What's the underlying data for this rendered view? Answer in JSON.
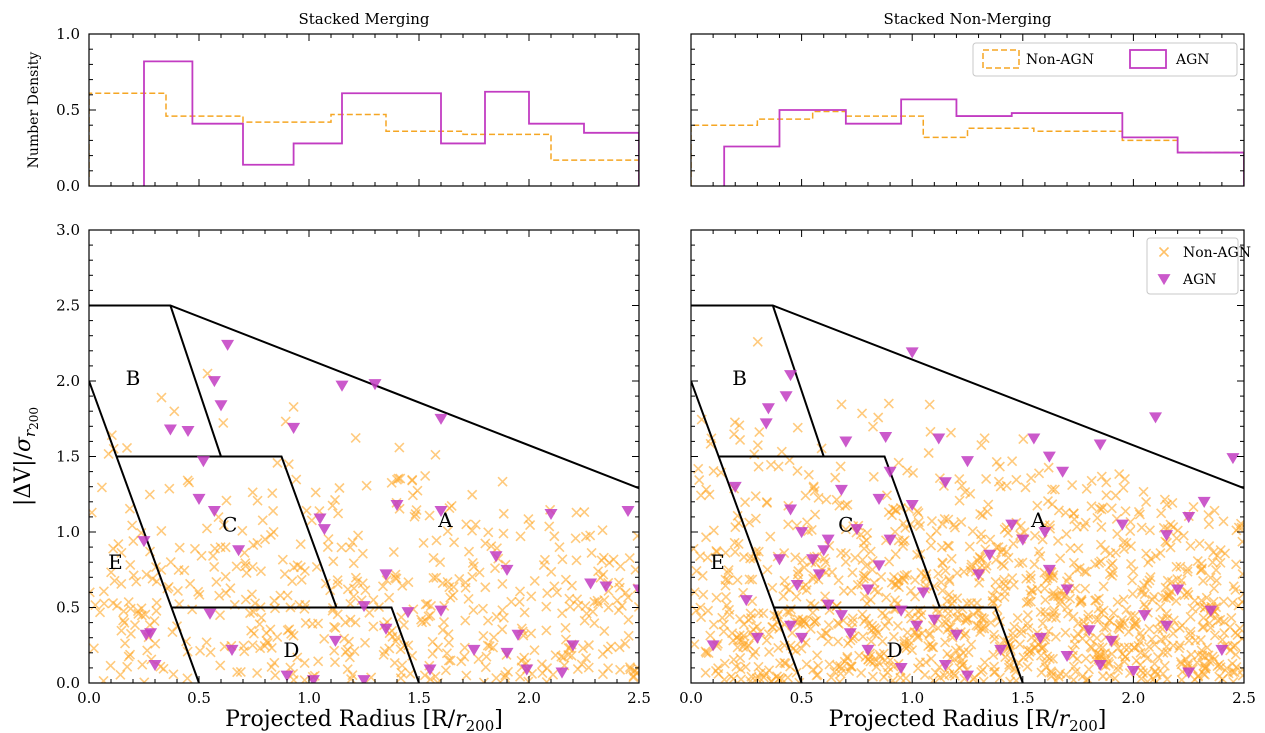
{
  "colors": {
    "non_agn": "#ffa726",
    "non_agn_hist": "#f5a623",
    "agn": "#c23cc2",
    "agn_marker": "#c23cc2",
    "axes": "#000000"
  },
  "chart_data": [
    {
      "panel": "top-left",
      "type": "step-histogram",
      "title": "Stacked Merging",
      "ylabel": "Number Density",
      "xlim": [
        0,
        2.5
      ],
      "ylim": [
        0,
        1.0
      ],
      "yticks": [
        "0.0",
        "0.5",
        "1.0"
      ],
      "show_x_tick_labels": false,
      "series": [
        {
          "name": "Non-AGN",
          "style": "dashed",
          "edges": [
            0.0,
            0.35,
            0.7,
            1.1,
            1.35,
            1.7,
            2.1,
            2.5
          ],
          "values": [
            0.61,
            0.46,
            0.42,
            0.47,
            0.36,
            0.34,
            0.17
          ]
        },
        {
          "name": "AGN",
          "style": "solid",
          "edges": [
            0.25,
            0.47,
            0.7,
            0.93,
            1.15,
            1.6,
            1.8,
            2.0,
            2.25,
            2.5
          ],
          "values": [
            0.82,
            0.41,
            0.14,
            0.28,
            0.61,
            0.28,
            0.62,
            0.41,
            0.35
          ]
        }
      ]
    },
    {
      "panel": "top-right",
      "type": "step-histogram",
      "title": "Stacked Non-Merging",
      "xlim": [
        0,
        2.5
      ],
      "ylim": [
        0,
        1.0
      ],
      "show_y_tick_labels": false,
      "show_x_tick_labels": false,
      "legend": {
        "position": "top-right",
        "entries": [
          "Non-AGN",
          "AGN"
        ]
      },
      "series": [
        {
          "name": "Non-AGN",
          "style": "dashed",
          "edges": [
            0.0,
            0.3,
            0.55,
            0.7,
            1.05,
            1.25,
            1.55,
            1.95,
            2.2,
            2.5
          ],
          "values": [
            0.4,
            0.44,
            0.49,
            0.46,
            0.32,
            0.38,
            0.36,
            0.3,
            0.22
          ]
        },
        {
          "name": "AGN",
          "style": "solid",
          "edges": [
            0.15,
            0.4,
            0.7,
            0.95,
            1.2,
            1.45,
            1.95,
            2.2,
            2.5
          ],
          "values": [
            0.26,
            0.5,
            0.41,
            0.57,
            0.46,
            0.48,
            0.32,
            0.22
          ]
        }
      ]
    },
    {
      "panel": "bottom-left",
      "type": "scatter",
      "xlabel": "Projected Radius [R/r200]",
      "ylabel": "|ΔV|/σr200",
      "xlim": [
        0,
        2.5
      ],
      "ylim": [
        0,
        3.0
      ],
      "xticks": [
        "0.0",
        "0.5",
        "1.0",
        "1.5",
        "2.0",
        "2.5"
      ],
      "yticks": [
        "0.0",
        "0.5",
        "1.0",
        "1.5",
        "2.0",
        "2.5",
        "3.0"
      ],
      "region_labels": [
        {
          "text": "A",
          "x": 1.62,
          "y": 1.08
        },
        {
          "text": "B",
          "x": 0.2,
          "y": 2.02
        },
        {
          "text": "C",
          "x": 0.64,
          "y": 1.05
        },
        {
          "text": "D",
          "x": 0.92,
          "y": 0.22
        },
        {
          "text": "E",
          "x": 0.12,
          "y": 0.8
        }
      ],
      "region_lines": [
        [
          [
            0.0,
            2.5
          ],
          [
            0.37,
            2.5
          ],
          [
            2.5,
            1.29
          ]
        ],
        [
          [
            0.37,
            2.5
          ],
          [
            0.6,
            1.5
          ]
        ],
        [
          [
            0.0,
            2.0
          ],
          [
            0.5,
            0.0
          ]
        ],
        [
          [
            0.125,
            1.5
          ],
          [
            0.875,
            1.5
          ],
          [
            1.125,
            0.5
          ],
          [
            0.375,
            0.5
          ]
        ],
        [
          [
            0.375,
            0.5
          ],
          [
            1.375,
            0.5
          ],
          [
            1.5,
            0.0
          ]
        ]
      ],
      "series": [
        {
          "name": "Non-AGN",
          "marker": "x",
          "seed": 11,
          "count": 520
        },
        {
          "name": "AGN",
          "marker": "triangle-down",
          "points": [
            [
              0.37,
              1.68
            ],
            [
              0.45,
              1.67
            ],
            [
              0.6,
              1.84
            ],
            [
              0.57,
              2.0
            ],
            [
              0.63,
              2.24
            ],
            [
              0.93,
              1.69
            ],
            [
              0.52,
              1.47
            ],
            [
              0.5,
              1.22
            ],
            [
              0.57,
              1.14
            ],
            [
              0.68,
              0.88
            ],
            [
              0.25,
              0.94
            ],
            [
              0.26,
              0.32
            ],
            [
              0.28,
              0.33
            ],
            [
              1.15,
              1.97
            ],
            [
              1.3,
              1.98
            ],
            [
              1.6,
              1.75
            ],
            [
              1.4,
              1.18
            ],
            [
              1.6,
              1.14
            ],
            [
              1.05,
              1.09
            ],
            [
              1.07,
              1.02
            ],
            [
              1.35,
              0.72
            ],
            [
              1.25,
              0.51
            ],
            [
              1.35,
              0.36
            ],
            [
              1.45,
              0.47
            ],
            [
              1.85,
              0.84
            ],
            [
              1.9,
              0.75
            ],
            [
              2.1,
              1.12
            ],
            [
              2.28,
              0.66
            ],
            [
              2.35,
              0.64
            ],
            [
              2.45,
              1.14
            ],
            [
              2.5,
              0.62
            ],
            [
              0.65,
              0.22
            ],
            [
              0.9,
              0.05
            ],
            [
              1.02,
              0.02
            ],
            [
              1.12,
              0.28
            ],
            [
              1.6,
              0.48
            ],
            [
              1.75,
              0.22
            ],
            [
              1.9,
              0.2
            ],
            [
              1.95,
              0.32
            ],
            [
              1.99,
              0.09
            ],
            [
              2.2,
              0.25
            ],
            [
              2.15,
              0.07
            ],
            [
              1.25,
              0.02
            ],
            [
              1.55,
              0.09
            ],
            [
              0.55,
              0.46
            ],
            [
              0.3,
              0.12
            ]
          ]
        }
      ]
    },
    {
      "panel": "bottom-right",
      "type": "scatter",
      "xlabel": "Projected Radius [R/r200]",
      "xlim": [
        0,
        2.5
      ],
      "ylim": [
        0,
        3.0
      ],
      "xticks": [
        "0.0",
        "0.5",
        "1.0",
        "1.5",
        "2.0",
        "2.5"
      ],
      "show_y_tick_labels": false,
      "legend": {
        "position": "top-right",
        "entries": [
          "Non-AGN",
          "AGN"
        ]
      },
      "region_labels": [
        {
          "text": "A",
          "x": 1.57,
          "y": 1.08
        },
        {
          "text": "B",
          "x": 0.22,
          "y": 2.02
        },
        {
          "text": "C",
          "x": 0.7,
          "y": 1.05
        },
        {
          "text": "D",
          "x": 0.92,
          "y": 0.22
        },
        {
          "text": "E",
          "x": 0.12,
          "y": 0.8
        }
      ],
      "region_lines": [
        [
          [
            0.0,
            2.5
          ],
          [
            0.37,
            2.5
          ],
          [
            2.5,
            1.29
          ]
        ],
        [
          [
            0.37,
            2.5
          ],
          [
            0.6,
            1.5
          ]
        ],
        [
          [
            0.0,
            2.0
          ],
          [
            0.5,
            0.0
          ]
        ],
        [
          [
            0.125,
            1.5
          ],
          [
            0.875,
            1.5
          ],
          [
            1.125,
            0.5
          ],
          [
            0.375,
            0.5
          ]
        ],
        [
          [
            0.375,
            0.5
          ],
          [
            1.375,
            0.5
          ],
          [
            1.5,
            0.0
          ]
        ]
      ],
      "series": [
        {
          "name": "Non-AGN",
          "marker": "x",
          "seed": 23,
          "count": 1150
        },
        {
          "name": "AGN",
          "marker": "triangle-down",
          "points": [
            [
              0.35,
              1.82
            ],
            [
              0.34,
              1.72
            ],
            [
              0.43,
              1.9
            ],
            [
              0.45,
              2.04
            ],
            [
              0.7,
              1.6
            ],
            [
              0.88,
              1.63
            ],
            [
              0.9,
              1.4
            ],
            [
              1.0,
              2.19
            ],
            [
              1.12,
              1.62
            ],
            [
              1.15,
              1.33
            ],
            [
              1.25,
              1.47
            ],
            [
              1.55,
              1.62
            ],
            [
              1.62,
              1.5
            ],
            [
              1.68,
              1.4
            ],
            [
              1.85,
              1.58
            ],
            [
              1.95,
              1.05
            ],
            [
              2.1,
              1.76
            ],
            [
              2.15,
              0.98
            ],
            [
              2.25,
              1.1
            ],
            [
              2.32,
              1.2
            ],
            [
              2.45,
              1.49
            ],
            [
              0.2,
              1.3
            ],
            [
              0.45,
              1.15
            ],
            [
              0.5,
              1.0
            ],
            [
              0.55,
              0.82
            ],
            [
              0.58,
              0.72
            ],
            [
              0.6,
              0.88
            ],
            [
              0.62,
              0.95
            ],
            [
              0.4,
              0.82
            ],
            [
              0.48,
              0.65
            ],
            [
              0.45,
              0.38
            ],
            [
              0.5,
              0.3
            ],
            [
              0.62,
              0.52
            ],
            [
              0.68,
              0.45
            ],
            [
              0.72,
              0.33
            ],
            [
              0.8,
              0.22
            ],
            [
              0.85,
              0.78
            ],
            [
              0.9,
              0.95
            ],
            [
              1.0,
              1.18
            ],
            [
              1.05,
              0.6
            ],
            [
              1.1,
              0.42
            ],
            [
              1.2,
              0.32
            ],
            [
              1.3,
              0.72
            ],
            [
              1.35,
              0.85
            ],
            [
              1.45,
              1.05
            ],
            [
              1.5,
              0.95
            ],
            [
              1.6,
              1.0
            ],
            [
              1.62,
              0.75
            ],
            [
              1.7,
              0.62
            ],
            [
              1.8,
              0.35
            ],
            [
              1.85,
              0.12
            ],
            [
              1.9,
              0.28
            ],
            [
              2.0,
              0.08
            ],
            [
              2.05,
              0.45
            ],
            [
              2.15,
              0.38
            ],
            [
              2.2,
              0.62
            ],
            [
              2.35,
              0.48
            ],
            [
              2.4,
              0.22
            ],
            [
              0.3,
              0.3
            ],
            [
              0.25,
              0.55
            ],
            [
              0.1,
              0.25
            ],
            [
              0.95,
              0.1
            ],
            [
              1.15,
              0.12
            ],
            [
              1.25,
              0.05
            ],
            [
              1.4,
              0.22
            ],
            [
              0.75,
              1.02
            ],
            [
              0.85,
              1.22
            ],
            [
              0.68,
              1.28
            ],
            [
              0.8,
              0.62
            ],
            [
              0.95,
              0.48
            ],
            [
              1.02,
              0.38
            ],
            [
              1.58,
              0.3
            ],
            [
              1.7,
              0.18
            ],
            [
              2.25,
              0.07
            ]
          ]
        }
      ]
    }
  ]
}
